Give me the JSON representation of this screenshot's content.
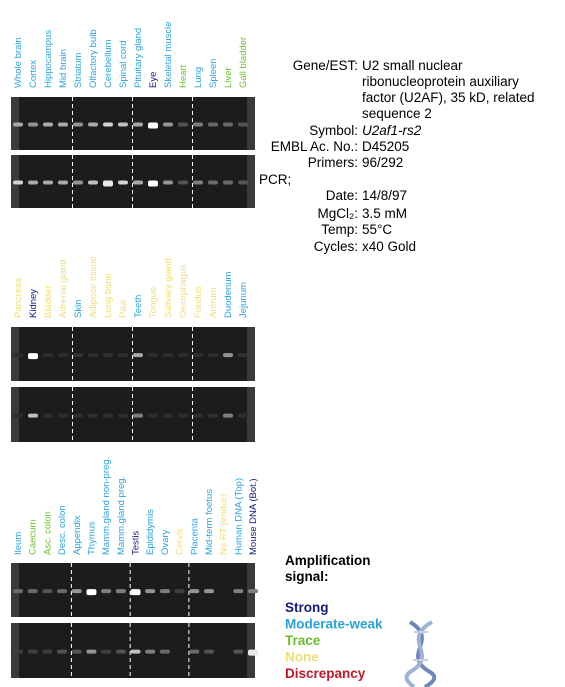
{
  "panels": [
    {
      "lanes": [
        {
          "label": "Whole brain",
          "color": "#29a3dc"
        },
        {
          "label": "Cortex",
          "color": "#29a3dc"
        },
        {
          "label": "Hippocampus",
          "color": "#29a3dc"
        },
        {
          "label": "Mid brain",
          "color": "#29a3dc"
        },
        {
          "label": "Striatum",
          "color": "#29a3dc"
        },
        {
          "label": "Olfactory bulb",
          "color": "#29a3dc"
        },
        {
          "label": "Cerebellum",
          "color": "#29a3dc"
        },
        {
          "label": "Spinal cord",
          "color": "#29a3dc"
        },
        {
          "label": "Pituitary gland",
          "color": "#29a3dc"
        },
        {
          "label": "Eye",
          "color": "#141a7a"
        },
        {
          "label": "Skeletal  muscle",
          "color": "#29a3dc"
        },
        {
          "label": "Heart",
          "color": "#6bbf2a"
        },
        {
          "label": "Lung",
          "color": "#29a3dc"
        },
        {
          "label": "Spleen",
          "color": "#29a3dc"
        },
        {
          "label": "Liver",
          "color": "#6bbf2a"
        },
        {
          "label": "Gall bladder",
          "color": "#6bbf2a"
        }
      ]
    },
    {
      "lanes": [
        {
          "label": "Pancreas",
          "color": "#f0de74"
        },
        {
          "label": "Kidney",
          "color": "#141a7a"
        },
        {
          "label": "Bladder",
          "color": "#f0de74"
        },
        {
          "label": "Adrenal gland",
          "color": "#f0de74"
        },
        {
          "label": "Skin",
          "color": "#29a3dc"
        },
        {
          "label": "Adipose tissue",
          "color": "#f0de74"
        },
        {
          "label": "Long bone",
          "color": "#f0de74"
        },
        {
          "label": "Paw",
          "color": "#f0de74"
        },
        {
          "label": "Teeth",
          "color": "#29a3dc"
        },
        {
          "label": "Tongue",
          "color": "#f0de74"
        },
        {
          "label": "Salivary gland",
          "color": "#f0de74"
        },
        {
          "label": "Oesophagus",
          "color": "#f0de74"
        },
        {
          "label": "Fundus",
          "color": "#f0de74"
        },
        {
          "label": "Antrum",
          "color": "#f0de74"
        },
        {
          "label": "Duodenum",
          "color": "#29a3dc"
        },
        {
          "label": "Jejunum",
          "color": "#29a3dc"
        }
      ]
    },
    {
      "lanes": [
        {
          "label": "Ileum",
          "color": "#29a3dc"
        },
        {
          "label": "Caecum",
          "color": "#6bbf2a"
        },
        {
          "label": "Asc. colon",
          "color": "#6bbf2a"
        },
        {
          "label": "Desc. colon",
          "color": "#29a3dc"
        },
        {
          "label": "Appendix",
          "color": "#29a3dc"
        },
        {
          "label": "Thymus",
          "color": "#29a3dc"
        },
        {
          "label": "Mamm.gland non-preg.",
          "color": "#29a3dc"
        },
        {
          "label": "Mamm.gland preg.",
          "color": "#29a3dc"
        },
        {
          "label": "Testis",
          "color": "#141a7a"
        },
        {
          "label": "Epididymis",
          "color": "#29a3dc"
        },
        {
          "label": "Ovary",
          "color": "#29a3dc"
        },
        {
          "label": "Cervix",
          "color": "#f0de74"
        },
        {
          "label": "Placenta",
          "color": "#29a3dc"
        },
        {
          "label": "Mid-term foetus",
          "color": "#29a3dc"
        },
        {
          "label": "No RT product",
          "color": "#f0de74"
        },
        {
          "label": "Human DNA (Top)",
          "color": "#29a3dc"
        },
        {
          "label": "Mouse DNA (Bot.)",
          "color": "#141a7a"
        }
      ]
    }
  ],
  "info": {
    "gene_key": "Gene/EST:",
    "gene_lines": [
      "U2 small nuclear",
      "ribonucleoprotein auxiliary",
      "factor (U2AF), 35 kD, related",
      "sequence 2"
    ],
    "symbol_key": "Symbol:",
    "symbol": "U2af1-rs2",
    "embl_key": "EMBL Ac. No.:",
    "embl": "D45205",
    "primers_key": "Primers:",
    "primers": "96/292",
    "pcr": "PCR;",
    "date_key": "Date:",
    "date": "14/8/97",
    "mgcl_key": "MgCl₂:",
    "mgcl": "3.5 mM",
    "temp_key": "Temp:",
    "temp": "55°C",
    "cycles_key": "Cycles:",
    "cycles": "x40 Gold"
  },
  "legend": {
    "title_lines": [
      "Amplification",
      "signal:"
    ],
    "items": [
      {
        "label": "Strong",
        "color": "#141a7a"
      },
      {
        "label": "Moderate-weak",
        "color": "#29a3dc"
      },
      {
        "label": "Trace",
        "color": "#6bbf2a"
      },
      {
        "label": "None",
        "color": "#f0de74"
      },
      {
        "label": "Discrepancy",
        "color": "#c0182a"
      }
    ]
  }
}
